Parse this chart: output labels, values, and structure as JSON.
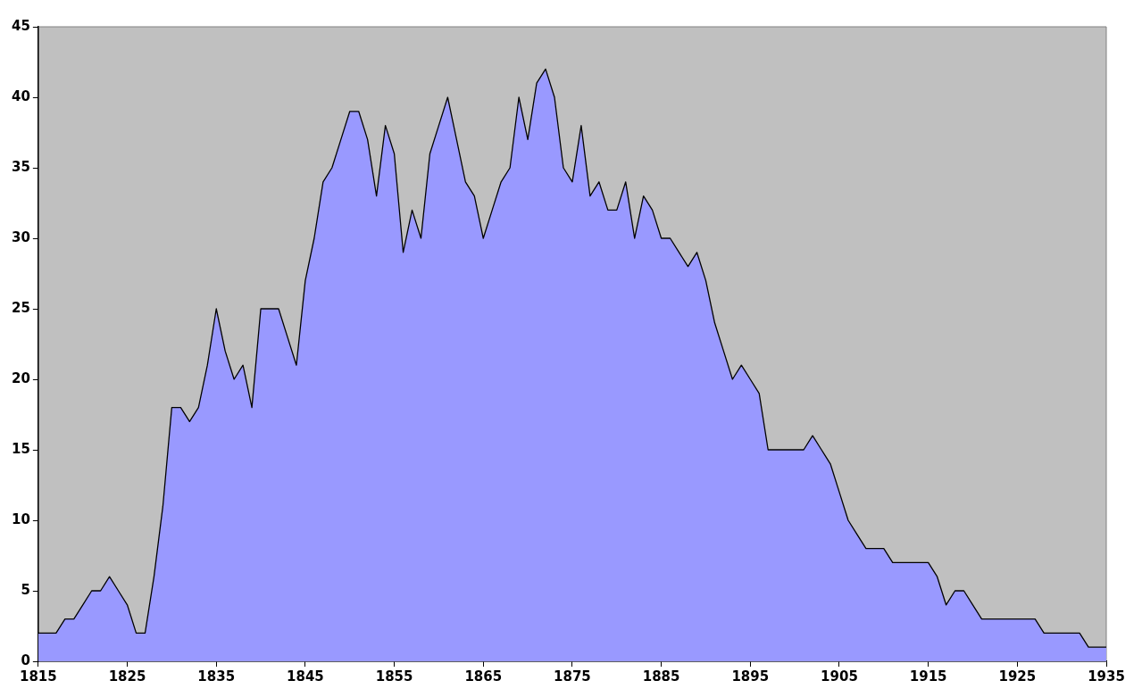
{
  "chart_data": {
    "type": "area",
    "x": [
      1815,
      1816,
      1817,
      1818,
      1819,
      1820,
      1821,
      1822,
      1823,
      1824,
      1825,
      1826,
      1827,
      1828,
      1829,
      1830,
      1831,
      1832,
      1833,
      1834,
      1835,
      1836,
      1837,
      1838,
      1839,
      1840,
      1841,
      1842,
      1843,
      1844,
      1845,
      1846,
      1847,
      1848,
      1849,
      1850,
      1851,
      1852,
      1853,
      1854,
      1855,
      1856,
      1857,
      1858,
      1859,
      1860,
      1861,
      1862,
      1863,
      1864,
      1865,
      1866,
      1867,
      1868,
      1869,
      1870,
      1871,
      1872,
      1873,
      1874,
      1875,
      1876,
      1877,
      1878,
      1879,
      1880,
      1881,
      1882,
      1883,
      1884,
      1885,
      1886,
      1887,
      1888,
      1889,
      1890,
      1891,
      1892,
      1893,
      1894,
      1895,
      1896,
      1897,
      1898,
      1899,
      1900,
      1901,
      1902,
      1903,
      1904,
      1905,
      1906,
      1907,
      1908,
      1909,
      1910,
      1911,
      1912,
      1913,
      1914,
      1915,
      1916,
      1917,
      1918,
      1919,
      1920,
      1921,
      1922,
      1923,
      1924,
      1925,
      1926,
      1927,
      1928,
      1929,
      1930,
      1931,
      1932,
      1933,
      1934,
      1935
    ],
    "series": [
      {
        "color": "#9999ff",
        "values": [
          2,
          2,
          2,
          3,
          3,
          4,
          5,
          5,
          6,
          5,
          4,
          2,
          2,
          6,
          11,
          18,
          18,
          17,
          18,
          21,
          25,
          22,
          20,
          21,
          18,
          25,
          25,
          25,
          23,
          21,
          27,
          30,
          34,
          35,
          37,
          39,
          39,
          37,
          33,
          38,
          36,
          29,
          32,
          30,
          36,
          38,
          40,
          37,
          34,
          33,
          30,
          32,
          34,
          35,
          40,
          37,
          41,
          42,
          40,
          35,
          34,
          38,
          33,
          34,
          32,
          32,
          34,
          30,
          33,
          32,
          30,
          30,
          29,
          28,
          29,
          27,
          24,
          22,
          20,
          21,
          20,
          19,
          15,
          15,
          15,
          15,
          15,
          16,
          15,
          14,
          12,
          10,
          9,
          8,
          8,
          8,
          7,
          7,
          7,
          7,
          7,
          6,
          4,
          5,
          5,
          4,
          3,
          3,
          3,
          3,
          3,
          3,
          3,
          2,
          2,
          2,
          2,
          2,
          1,
          1,
          1
        ]
      }
    ],
    "xlim": [
      1815,
      1935
    ],
    "xticks": [
      1815,
      1825,
      1835,
      1845,
      1855,
      1865,
      1875,
      1885,
      1895,
      1905,
      1915,
      1925,
      1935
    ],
    "ylim": [
      0,
      45
    ],
    "yticks": [
      0,
      5,
      10,
      15,
      20,
      25,
      30,
      35,
      40,
      45
    ],
    "grid": false,
    "legend": false
  }
}
